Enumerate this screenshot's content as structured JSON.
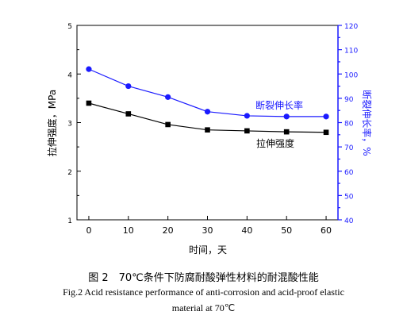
{
  "chart_data": {
    "type": "line",
    "x": [
      0,
      10,
      20,
      30,
      40,
      50,
      60
    ],
    "x_ticks": [
      "0",
      "10",
      "20",
      "30",
      "40",
      "50",
      "60"
    ],
    "xlim": [
      -3,
      63
    ],
    "xlabel": "时间，天",
    "y_left": {
      "label": "拉伸强度，MPa",
      "range": [
        1,
        5
      ],
      "ticks": [
        "1",
        "2",
        "3",
        "4",
        "5"
      ],
      "color": "#000000"
    },
    "y_right": {
      "label": "断裂伸长率，%",
      "range": [
        40,
        120
      ],
      "ticks": [
        "40",
        "50",
        "60",
        "70",
        "80",
        "90",
        "100",
        "110",
        "120"
      ],
      "color": "#1a1aff"
    },
    "series": [
      {
        "name": "断裂伸长率",
        "axis": "right",
        "color": "#1a1aff",
        "marker": "circle",
        "values": [
          102,
          95,
          90.5,
          84.5,
          82.8,
          82.5,
          82.5
        ]
      },
      {
        "name": "拉伸强度",
        "axis": "left",
        "color": "#000000",
        "marker": "square",
        "values": [
          3.4,
          3.18,
          2.96,
          2.85,
          2.83,
          2.81,
          2.8
        ]
      }
    ],
    "annotations": [
      "断裂伸长率",
      "拉伸强度"
    ],
    "grid": false
  },
  "caption": {
    "zh": "图 2　70℃条件下防腐耐酸弹性材料的耐混酸性能",
    "en_line1": "Fig.2 Acid resistance performance of anti-corrosion and acid-proof elastic",
    "en_line2": "material at 70℃"
  }
}
